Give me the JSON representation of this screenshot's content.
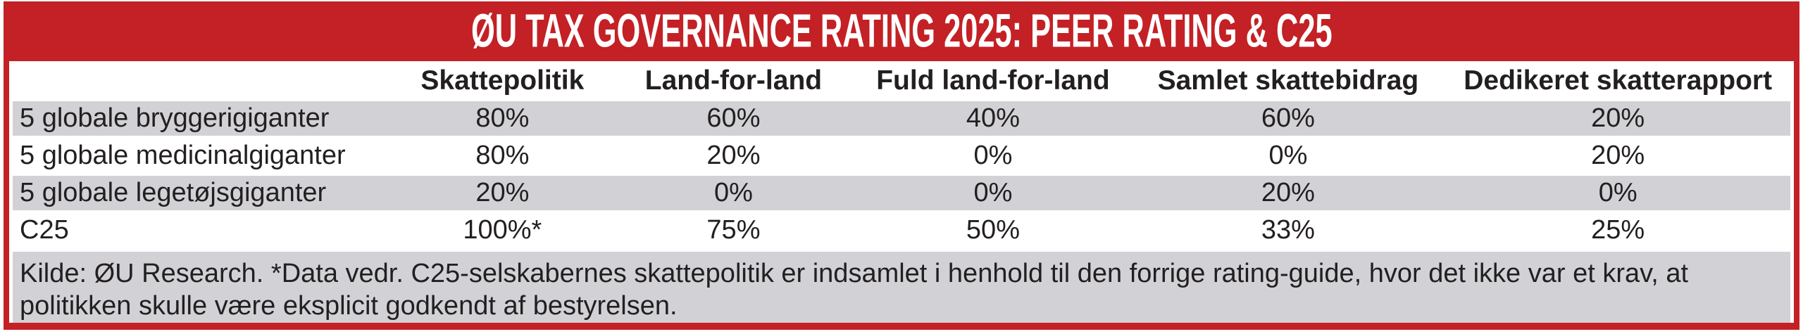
{
  "header": {
    "title": "ØU TAX GOVERNANCE RATING 2025: PEER RATING & C25"
  },
  "table": {
    "columns": [
      "",
      "Skattepolitik",
      "Land-for-land",
      "Fuld land-for-land",
      "Samlet skattebidrag",
      "Dedikeret skatterapport"
    ],
    "rows": [
      {
        "label": "5 globale bryggerigiganter",
        "values": [
          "80%",
          "60%",
          "40%",
          "60%",
          "20%"
        ]
      },
      {
        "label": "5 globale medicinalgiganter",
        "values": [
          "80%",
          "20%",
          "0%",
          "0%",
          "20%"
        ]
      },
      {
        "label": "5 globale legetøjsgiganter",
        "values": [
          "20%",
          "0%",
          "0%",
          "20%",
          "0%"
        ]
      },
      {
        "label": "C25",
        "values": [
          "100%*",
          "75%",
          "50%",
          "33%",
          "25%"
        ]
      }
    ]
  },
  "footnote": {
    "text": "Kilde: ØU Research. *Data vedr. C25-selskabernes skattepolitik er indsamlet i henhold til den forrige rating-guide, hvor det ikke var et krav, at politikken skulle være eksplicit godkendt af bestyrelsen."
  },
  "colors": {
    "accent_red": "#c32125",
    "stripe_gray": "#d2d2d6",
    "title_text": "#ffffff",
    "body_text": "#231f20"
  },
  "chart_data": {
    "type": "table",
    "title": "ØU TAX GOVERNANCE RATING 2025: PEER RATING & C25",
    "columns": [
      "",
      "Skattepolitik",
      "Land-for-land",
      "Fuld land-for-land",
      "Samlet skattebidrag",
      "Dedikeret skatterapport"
    ],
    "rows": [
      [
        "5 globale bryggerigiganter",
        "80%",
        "60%",
        "40%",
        "60%",
        "20%"
      ],
      [
        "5 globale medicinalgiganter",
        "80%",
        "20%",
        "0%",
        "0%",
        "20%"
      ],
      [
        "5 globale legetøjsgiganter",
        "20%",
        "0%",
        "0%",
        "20%",
        "0%"
      ],
      [
        "C25",
        "100%*",
        "75%",
        "50%",
        "33%",
        "25%"
      ]
    ],
    "values_numeric_pct": {
      "5 globale bryggerigiganter": [
        80,
        60,
        40,
        60,
        20
      ],
      "5 globale medicinalgiganter": [
        80,
        20,
        0,
        0,
        20
      ],
      "5 globale legetøjsgiganter": [
        20,
        0,
        0,
        20,
        0
      ],
      "C25": [
        100,
        75,
        50,
        33,
        25
      ]
    },
    "note": "Kilde: ØU Research. *Data vedr. C25-selskabernes skattepolitik er indsamlet i henhold til den forrige rating-guide, hvor det ikke var et krav, at politikken skulle være eksplicit godkendt af bestyrelsen."
  }
}
